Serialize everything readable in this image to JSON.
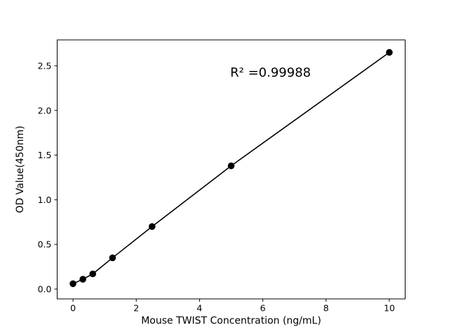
{
  "window": {
    "background": "#ffffff",
    "foreground": "#000000"
  },
  "chart_data": {
    "type": "scatter",
    "title": "",
    "xlabel": "Mouse TWIST Concentration (ng/mL)",
    "ylabel": "OD Value(450nm)",
    "x": [
      0,
      0.3125,
      0.625,
      1.25,
      2.5,
      5,
      10
    ],
    "y": [
      0.06,
      0.11,
      0.17,
      0.35,
      0.7,
      1.38,
      2.65
    ],
    "series": [
      {
        "name": "standard-curve",
        "marker": "circle",
        "marker_color": "#000000",
        "line_color": "#000000",
        "line": true
      }
    ],
    "annotation": {
      "text": "R² =0.99988",
      "x": 4.97,
      "y": 2.38
    },
    "xlim": [
      -0.5,
      10.5
    ],
    "ylim": [
      -0.11,
      2.79
    ],
    "xticks": {
      "values": [
        0,
        2,
        4,
        6,
        8,
        10
      ],
      "labels": [
        "0",
        "2",
        "4",
        "6",
        "8",
        "10"
      ]
    },
    "yticks": {
      "values": [
        0.0,
        0.5,
        1.0,
        1.5,
        2.0,
        2.5
      ],
      "labels": [
        "0.0",
        "0.5",
        "1.0",
        "1.5",
        "2.0",
        "2.5"
      ]
    },
    "grid": false,
    "legend": null
  }
}
